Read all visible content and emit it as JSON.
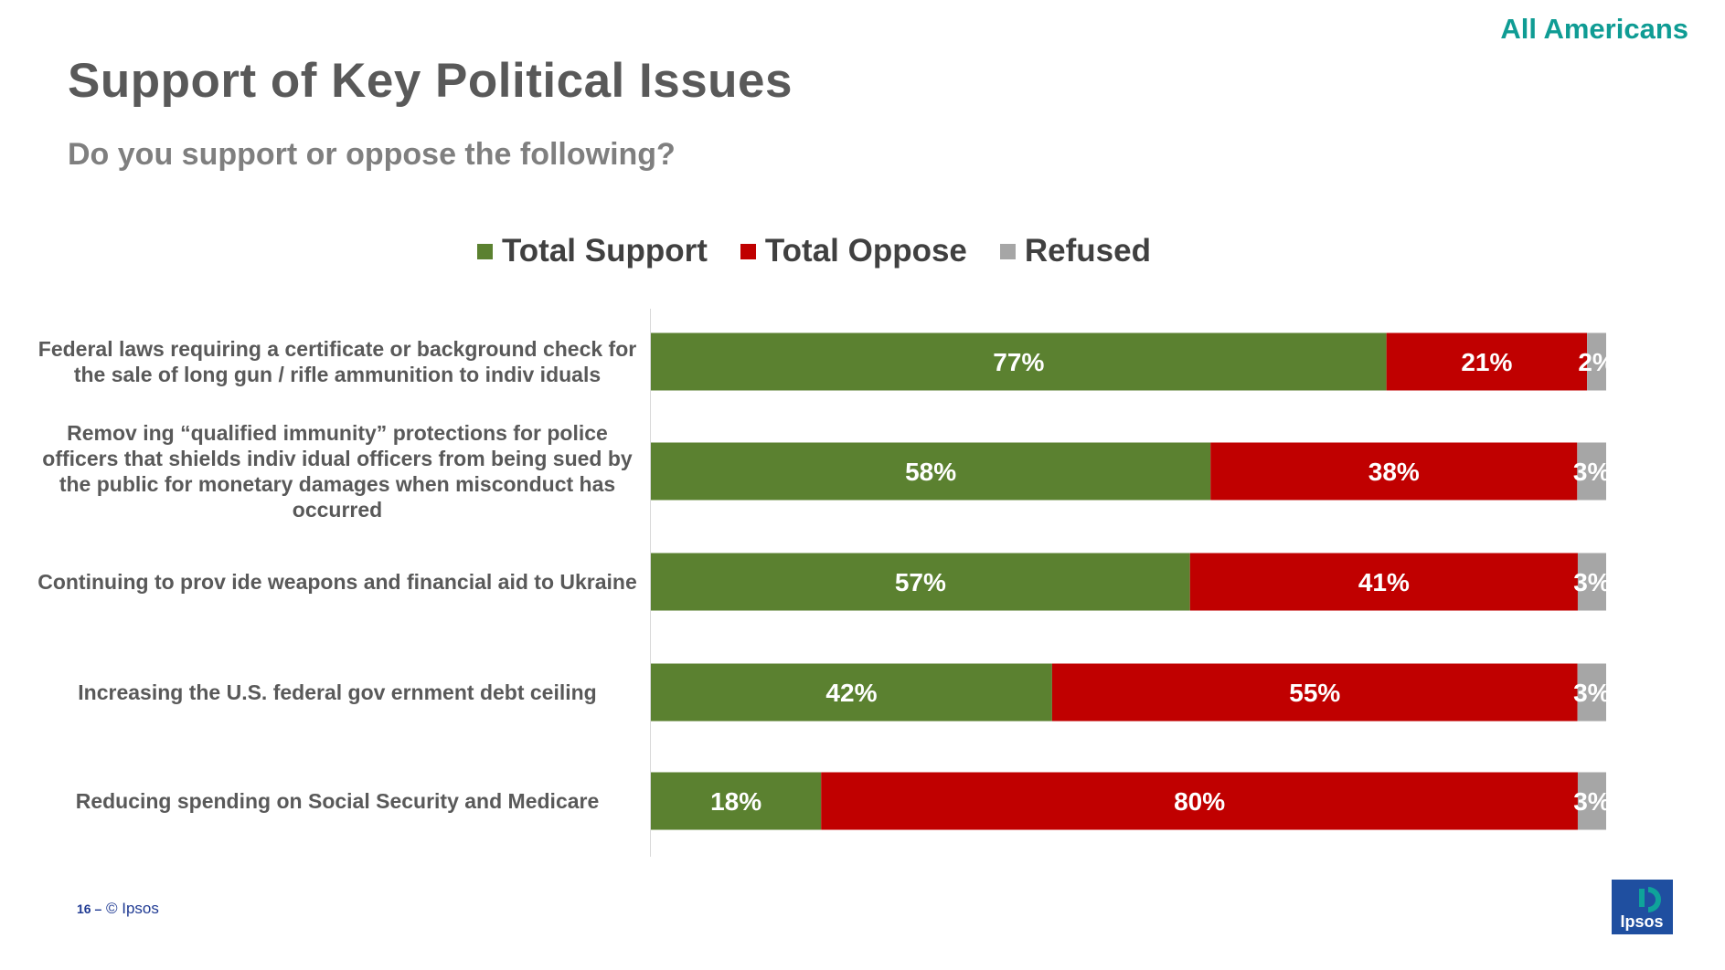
{
  "header": {
    "badge": "All Americans",
    "title": "Support of Key Political Issues",
    "subtitle": "Do you support or oppose the following?"
  },
  "colors": {
    "support": "#5b8130",
    "oppose": "#c00000",
    "refused": "#a6a6a6",
    "accent": "#0f9c94"
  },
  "chart_data": {
    "type": "bar",
    "orientation": "horizontal",
    "stacked": true,
    "legend_position": "top",
    "grid": false,
    "xlim": [
      0,
      100
    ],
    "unit": "%",
    "categories": [
      "Federal laws requiring a certificate or background check for the sale of long gun / rifle ammunition to indiv iduals",
      "Remov ing “qualified immunity” protections for police officers that shields indiv idual officers from being sued by the public for monetary damages when misconduct has occurred",
      "Continuing to prov ide weapons and financial aid to Ukraine",
      "Increasing the U.S. federal gov ernment debt ceiling",
      "Reducing spending on Social Security and Medicare"
    ],
    "series": [
      {
        "name": "Total Support",
        "values": [
          77,
          58,
          57,
          42,
          18
        ],
        "labels": [
          "77%",
          "58%",
          "57%",
          "42%",
          "18%"
        ]
      },
      {
        "name": "Total Oppose",
        "values": [
          21,
          38,
          41,
          55,
          80
        ],
        "labels": [
          "21%",
          "38%",
          "41%",
          "55%",
          "80%"
        ]
      },
      {
        "name": "Refused",
        "values": [
          2,
          3,
          3,
          3,
          3
        ],
        "labels": [
          "2%",
          "3%",
          "3%",
          "3%",
          "3%"
        ]
      }
    ]
  },
  "footer": {
    "page_number": "16 –",
    "copyright": "© Ipsos",
    "logo_text": "Ipsos"
  }
}
